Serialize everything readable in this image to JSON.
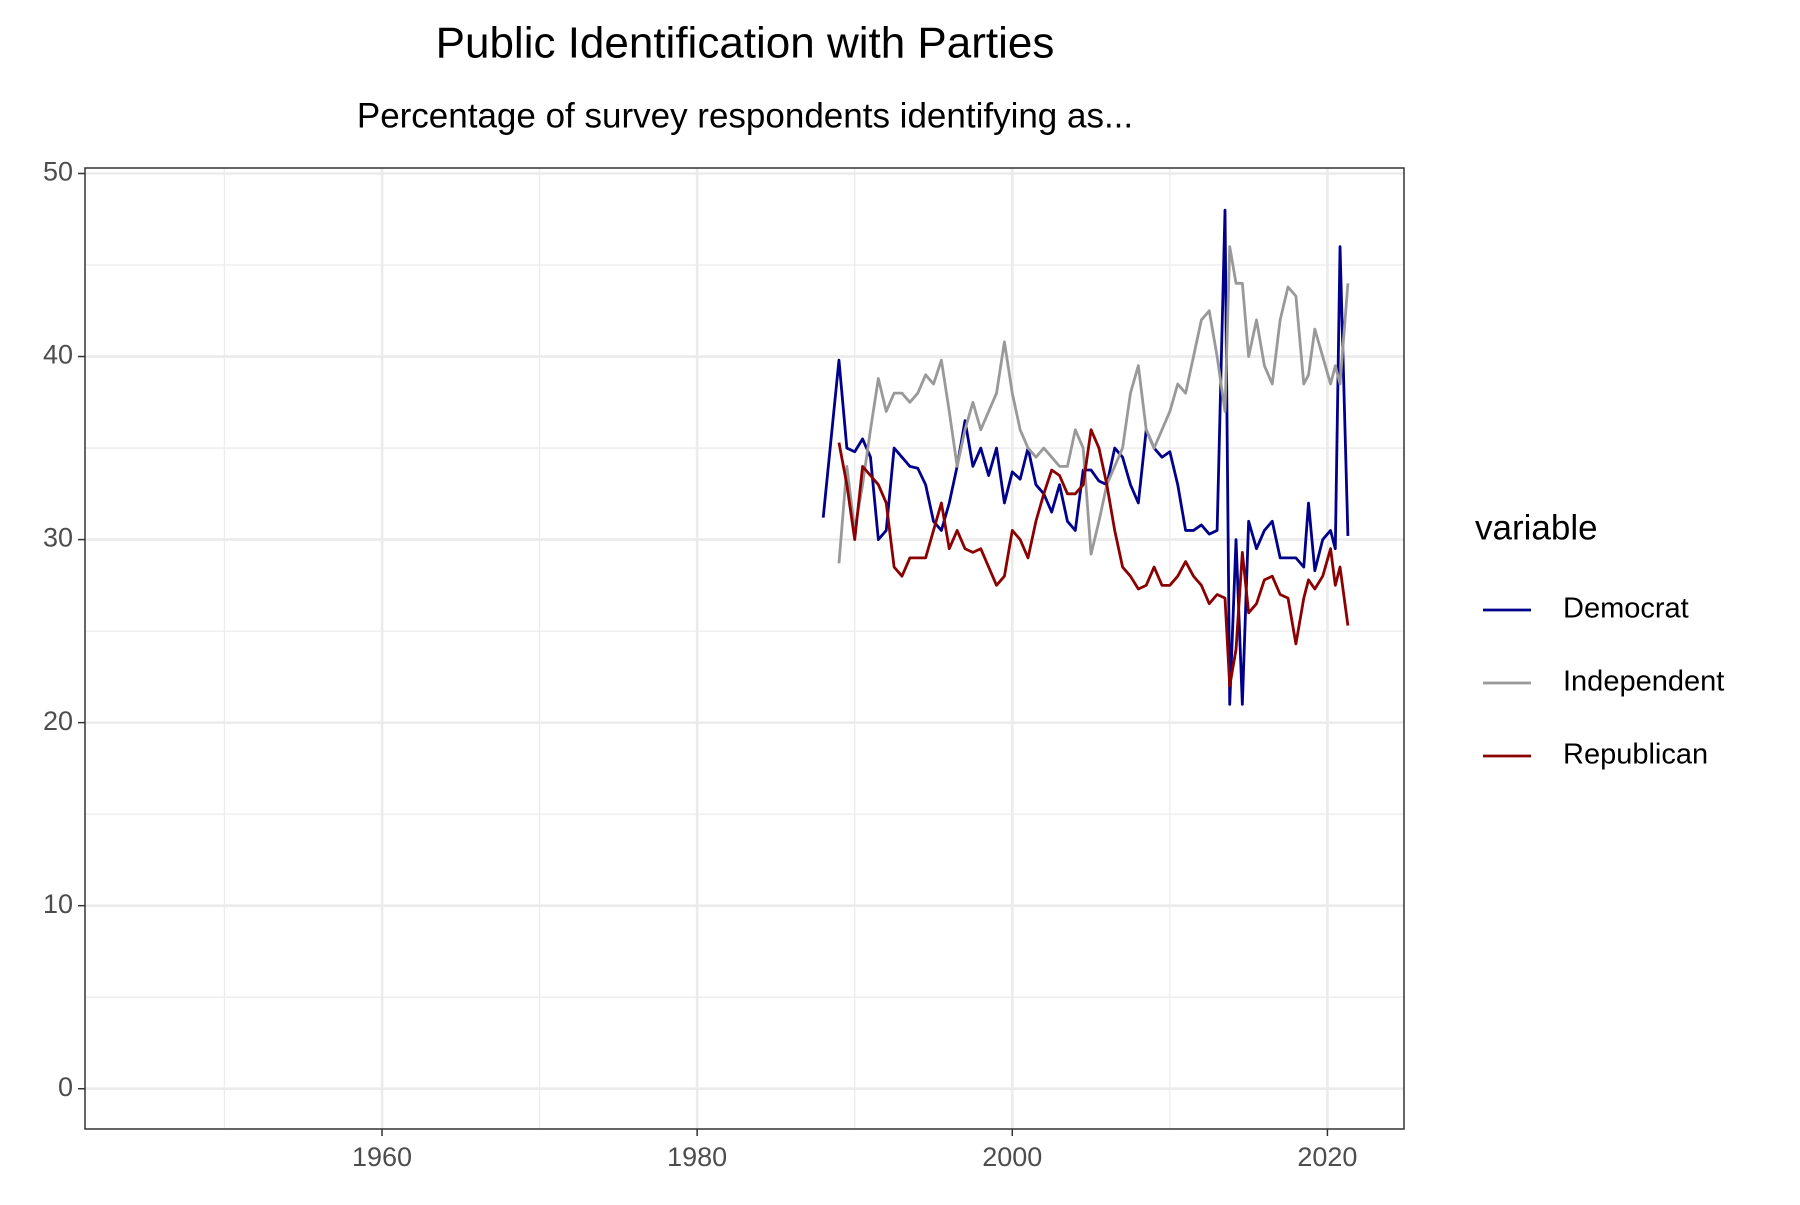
{
  "chart_data": {
    "type": "line",
    "title": "Public Identification with Parties",
    "subtitle": "Percentage of survey respondents identifying as...",
    "legend_title": "variable",
    "legend_position": "right",
    "grid": true,
    "x": [
      1988.0,
      1989.0,
      1989.5,
      1990.0,
      1990.5,
      1991.0,
      1991.5,
      1992.0,
      1992.5,
      1993.0,
      1993.5,
      1994.0,
      1994.5,
      1995.0,
      1995.5,
      1996.0,
      1996.5,
      1997.0,
      1997.5,
      1998.0,
      1998.5,
      1999.0,
      1999.5,
      2000.0,
      2000.5,
      2001.0,
      2001.5,
      2002.0,
      2002.5,
      2003.0,
      2003.5,
      2004.0,
      2004.5,
      2005.0,
      2005.5,
      2006.0,
      2006.5,
      2007.0,
      2007.5,
      2008.0,
      2008.5,
      2009.0,
      2009.5,
      2010.0,
      2010.5,
      2011.0,
      2011.5,
      2012.0,
      2012.5,
      2013.0,
      2013.5,
      2013.8,
      2014.2,
      2014.6,
      2015.0,
      2015.5,
      2016.0,
      2016.5,
      2017.0,
      2017.5,
      2018.0,
      2018.5,
      2018.8,
      2019.2,
      2019.7,
      2020.2,
      2020.5,
      2020.8,
      2021.3
    ],
    "series": [
      {
        "name": "Democrat",
        "color": "#00008b",
        "values": [
          31.2,
          39.8,
          35,
          34.8,
          35.5,
          34.5,
          30,
          30.5,
          35,
          34.5,
          34,
          33.9,
          33,
          31,
          30.5,
          32,
          34,
          36.5,
          34,
          35,
          33.5,
          35,
          32,
          33.7,
          33.3,
          35,
          33,
          32.5,
          31.5,
          33,
          31,
          30.5,
          33.8,
          33.8,
          33.2,
          33,
          35,
          34.5,
          33,
          32,
          36,
          35,
          34.5,
          34.8,
          33,
          30.5,
          30.5,
          30.8,
          30.3,
          30.5,
          48,
          21,
          30,
          21,
          31,
          29.5,
          30.5,
          31,
          29,
          29,
          29,
          28.5,
          32,
          28.3,
          30,
          30.5,
          29.5,
          46,
          30.2
        ]
      },
      {
        "name": "Independent",
        "color": "#999999",
        "values": [
          null,
          28.7,
          34,
          30.5,
          33,
          36,
          38.8,
          37,
          38,
          38,
          37.5,
          38,
          39,
          38.5,
          39.8,
          37,
          34,
          36,
          37.5,
          36,
          37,
          38,
          40.8,
          38,
          36,
          35,
          34.5,
          35,
          34.5,
          34,
          34,
          36,
          35,
          29.2,
          31,
          33,
          34,
          35,
          38,
          39.5,
          36,
          35,
          36,
          37,
          38.5,
          38,
          40,
          42,
          42.5,
          40,
          37,
          46,
          44,
          44,
          40,
          42,
          39.5,
          38.5,
          42,
          43.8,
          43.3,
          38.5,
          39,
          41.5,
          40,
          38.5,
          39.5,
          38.5,
          44
        ]
      },
      {
        "name": "Republican",
        "color": "#8b0000",
        "values": [
          null,
          35.3,
          33,
          30,
          34,
          33.5,
          33,
          32,
          28.5,
          28,
          29,
          29,
          29,
          30.5,
          32,
          29.5,
          30.5,
          29.5,
          29.3,
          29.5,
          28.5,
          27.5,
          28,
          30.5,
          30,
          29,
          31,
          32.5,
          33.8,
          33.5,
          32.5,
          32.5,
          33,
          36,
          35,
          33,
          30.5,
          28.5,
          28,
          27.3,
          27.5,
          28.5,
          27.5,
          27.5,
          28,
          28.8,
          28,
          27.5,
          26.5,
          27,
          26.8,
          22,
          24,
          29.3,
          26,
          26.5,
          27.8,
          28,
          27,
          26.8,
          24.3,
          26.8,
          27.8,
          27.3,
          28,
          29.5,
          27.5,
          28.5,
          25.3
        ]
      }
    ],
    "xlim": [
      1941.15,
      2024.86
    ],
    "xticks": [
      1960,
      1980,
      2000,
      2020
    ],
    "x_minor_grid": [
      1950,
      1970,
      1990,
      2010
    ],
    "ylim": [
      -2.2,
      50.3
    ],
    "yticks": [
      0,
      10,
      20,
      30,
      40,
      50
    ],
    "y_minor_grid": [
      5,
      15,
      25,
      35,
      45
    ]
  }
}
